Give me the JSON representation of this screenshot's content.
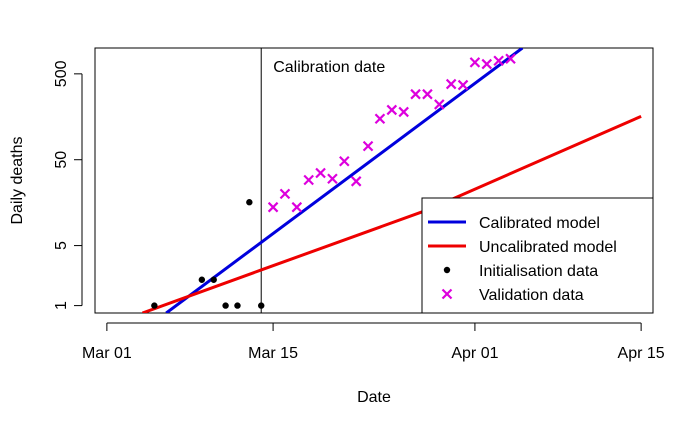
{
  "chart_data": {
    "type": "line",
    "xlabel": "Date",
    "ylabel": "Daily deaths",
    "y_scale": "log",
    "x_range": [
      "2020-02-29",
      "2020-04-16"
    ],
    "y_range": [
      0.82,
      1000
    ],
    "x_ticks": [
      {
        "date": "2020-03-01",
        "label": "Mar 01"
      },
      {
        "date": "2020-03-15",
        "label": "Mar 15"
      },
      {
        "date": "2020-04-01",
        "label": "Apr 01"
      },
      {
        "date": "2020-04-15",
        "label": "Apr 15"
      }
    ],
    "y_ticks": [
      {
        "value": 1,
        "label": "1"
      },
      {
        "value": 5,
        "label": "5"
      },
      {
        "value": 50,
        "label": "50"
      },
      {
        "value": 500,
        "label": "500"
      }
    ],
    "calibration_line": {
      "date": "2020-03-14",
      "label": "Calibration date"
    },
    "series": [
      {
        "name": "Calibrated model",
        "kind": "line",
        "color": "#0000dd",
        "points": [
          {
            "x": "2020-03-06",
            "y": 0.82
          },
          {
            "x": "2020-04-05",
            "y": 1000
          }
        ]
      },
      {
        "name": "Uncalibrated model",
        "kind": "line",
        "color": "#ee0000",
        "points": [
          {
            "x": "2020-03-04",
            "y": 0.82
          },
          {
            "x": "2020-03-14",
            "y": 2.6
          },
          {
            "x": "2020-03-28",
            "y": 13
          },
          {
            "x": "2020-04-15",
            "y": 160
          }
        ]
      },
      {
        "name": "Initialisation data",
        "kind": "points",
        "color": "#000000",
        "marker": "dot",
        "points": [
          {
            "x": "2020-03-05",
            "y": 1
          },
          {
            "x": "2020-03-09",
            "y": 2
          },
          {
            "x": "2020-03-10",
            "y": 2
          },
          {
            "x": "2020-03-11",
            "y": 1
          },
          {
            "x": "2020-03-12",
            "y": 1
          },
          {
            "x": "2020-03-13",
            "y": 16
          },
          {
            "x": "2020-03-14",
            "y": 1
          }
        ]
      },
      {
        "name": "Validation data",
        "kind": "points",
        "color": "#dd00dd",
        "marker": "x",
        "points": [
          {
            "x": "2020-03-15",
            "y": 14
          },
          {
            "x": "2020-03-16",
            "y": 20
          },
          {
            "x": "2020-03-17",
            "y": 14
          },
          {
            "x": "2020-03-18",
            "y": 29
          },
          {
            "x": "2020-03-19",
            "y": 35
          },
          {
            "x": "2020-03-20",
            "y": 30
          },
          {
            "x": "2020-03-21",
            "y": 48
          },
          {
            "x": "2020-03-22",
            "y": 28
          },
          {
            "x": "2020-03-23",
            "y": 72
          },
          {
            "x": "2020-03-24",
            "y": 150
          },
          {
            "x": "2020-03-25",
            "y": 190
          },
          {
            "x": "2020-03-26",
            "y": 180
          },
          {
            "x": "2020-03-27",
            "y": 290
          },
          {
            "x": "2020-03-28",
            "y": 290
          },
          {
            "x": "2020-03-29",
            "y": 220
          },
          {
            "x": "2020-03-30",
            "y": 380
          },
          {
            "x": "2020-03-31",
            "y": 370
          },
          {
            "x": "2020-04-01",
            "y": 680
          },
          {
            "x": "2020-04-02",
            "y": 650
          },
          {
            "x": "2020-04-03",
            "y": 710
          },
          {
            "x": "2020-04-04",
            "y": 750
          }
        ]
      }
    ],
    "legend": {
      "position": "bottom-right"
    }
  }
}
